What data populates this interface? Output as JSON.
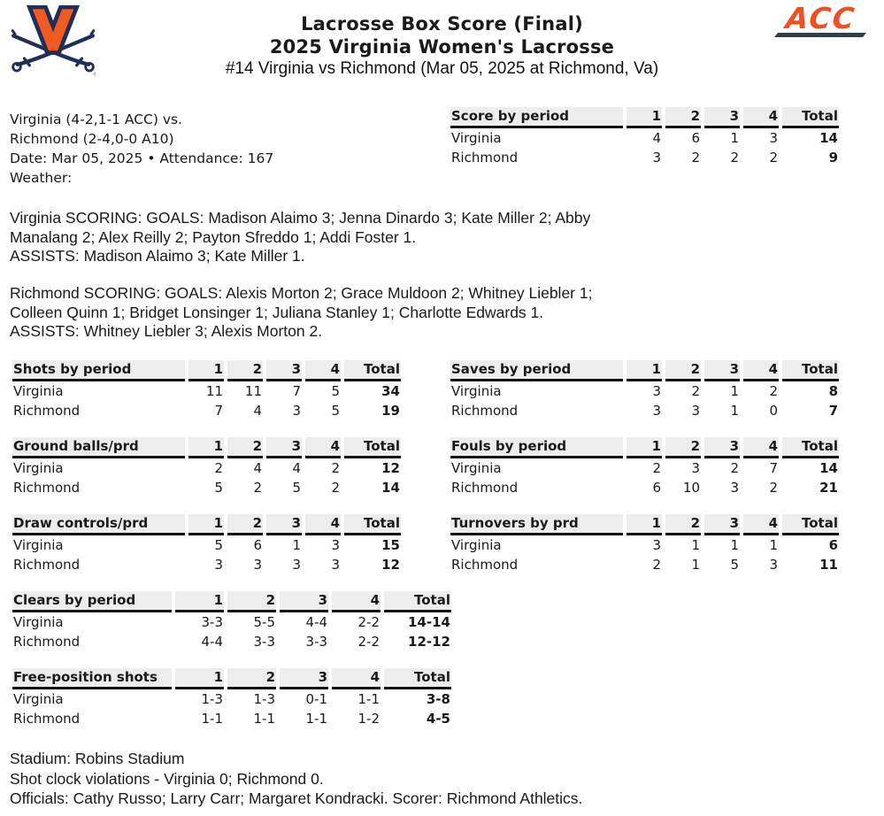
{
  "header": {
    "title_line1": "Lacrosse Box Score (Final)",
    "title_line2": "2025 Virginia Women's Lacrosse",
    "subtitle": "#14 Virginia vs Richmond (Mar 05, 2025 at Richmond, Va)",
    "acc_logo_text": "ACC",
    "colors": {
      "uva_orange": "#F15A22",
      "uva_navy": "#1F2F57",
      "acc_orange": "#F04E23",
      "acc_navy": "#2C4055",
      "table_header_bg": "#EDEDED"
    }
  },
  "game_info": {
    "lines": [
      "Virginia (4-2,1-1 ACC) vs.",
      "Richmond (2-4,0-0 A10)",
      "Date: Mar 05, 2025 • Attendance: 167",
      "Weather:"
    ]
  },
  "scoring": {
    "virginia_lines": [
      "Virginia SCORING: GOALS: Madison Alaimo 3; Jenna Dinardo 3; Kate Miller 2; Abby",
      "Manalang 2; Alex Reilly 2; Payton Sfreddo 1; Addi Foster 1.",
      "ASSISTS: Madison Alaimo 3; Kate Miller 1."
    ],
    "richmond_lines": [
      "Richmond SCORING: GOALS: Alexis Morton 2; Grace Muldoon 2; Whitney Liebler 1;",
      "Colleen Quinn 1; Bridget Lonsinger 1; Juliana Stanley 1; Charlotte Edwards 1.",
      "ASSISTS: Whitney Liebler 3; Alexis Morton 2."
    ]
  },
  "tables": [
    {
      "title": "Score by period",
      "columns": [
        "1",
        "2",
        "3",
        "4",
        "Total"
      ],
      "rows": [
        {
          "team": "Virginia",
          "values": [
            "4",
            "6",
            "1",
            "3",
            "14"
          ]
        },
        {
          "team": "Richmond",
          "values": [
            "3",
            "2",
            "2",
            "2",
            "9"
          ]
        }
      ]
    },
    {
      "title": "Shots by period",
      "columns": [
        "1",
        "2",
        "3",
        "4",
        "Total"
      ],
      "rows": [
        {
          "team": "Virginia",
          "values": [
            "11",
            "11",
            "7",
            "5",
            "34"
          ]
        },
        {
          "team": "Richmond",
          "values": [
            "7",
            "4",
            "3",
            "5",
            "19"
          ]
        }
      ]
    },
    {
      "title": "Saves by period",
      "columns": [
        "1",
        "2",
        "3",
        "4",
        "Total"
      ],
      "rows": [
        {
          "team": "Virginia",
          "values": [
            "3",
            "2",
            "1",
            "2",
            "8"
          ]
        },
        {
          "team": "Richmond",
          "values": [
            "3",
            "3",
            "1",
            "0",
            "7"
          ]
        }
      ]
    },
    {
      "title": "Ground balls/prd",
      "columns": [
        "1",
        "2",
        "3",
        "4",
        "Total"
      ],
      "rows": [
        {
          "team": "Virginia",
          "values": [
            "2",
            "4",
            "4",
            "2",
            "12"
          ]
        },
        {
          "team": "Richmond",
          "values": [
            "5",
            "2",
            "5",
            "2",
            "14"
          ]
        }
      ]
    },
    {
      "title": "Fouls by period",
      "columns": [
        "1",
        "2",
        "3",
        "4",
        "Total"
      ],
      "rows": [
        {
          "team": "Virginia",
          "values": [
            "2",
            "3",
            "2",
            "7",
            "14"
          ]
        },
        {
          "team": "Richmond",
          "values": [
            "6",
            "10",
            "3",
            "2",
            "21"
          ]
        }
      ]
    },
    {
      "title": "Draw controls/prd",
      "columns": [
        "1",
        "2",
        "3",
        "4",
        "Total"
      ],
      "rows": [
        {
          "team": "Virginia",
          "values": [
            "5",
            "6",
            "1",
            "3",
            "15"
          ]
        },
        {
          "team": "Richmond",
          "values": [
            "3",
            "3",
            "3",
            "3",
            "12"
          ]
        }
      ]
    },
    {
      "title": "Turnovers by prd",
      "columns": [
        "1",
        "2",
        "3",
        "4",
        "Total"
      ],
      "rows": [
        {
          "team": "Virginia",
          "values": [
            "3",
            "1",
            "1",
            "1",
            "6"
          ]
        },
        {
          "team": "Richmond",
          "values": [
            "2",
            "1",
            "5",
            "3",
            "11"
          ]
        }
      ]
    },
    {
      "title": "Clears by period",
      "columns": [
        "1",
        "2",
        "3",
        "4",
        "Total"
      ],
      "rows": [
        {
          "team": "Virginia",
          "values": [
            "3-3",
            "5-5",
            "4-4",
            "2-2",
            "14-14"
          ]
        },
        {
          "team": "Richmond",
          "values": [
            "4-4",
            "3-3",
            "3-3",
            "2-2",
            "12-12"
          ]
        }
      ]
    },
    {
      "title": "Free-position shots",
      "columns": [
        "1",
        "2",
        "3",
        "4",
        "Total"
      ],
      "rows": [
        {
          "team": "Virginia",
          "values": [
            "1-3",
            "1-3",
            "0-1",
            "1-1",
            "3-8"
          ]
        },
        {
          "team": "Richmond",
          "values": [
            "1-1",
            "1-1",
            "1-1",
            "1-2",
            "4-5"
          ]
        }
      ]
    }
  ],
  "footer": {
    "lines": [
      "Stadium: Robins Stadium",
      "Shot clock violations - Virginia 0; Richmond 0.",
      "Officials: Cathy Russo; Larry Carr; Margaret Kondracki. Scorer: Richmond Athletics."
    ]
  }
}
